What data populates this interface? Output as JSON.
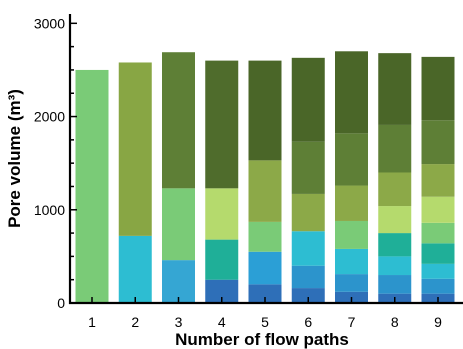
{
  "chart_data": {
    "type": "bar",
    "stacked": true,
    "xlabel": "Number of flow paths",
    "ylabel": "Pore volume (m³)",
    "ylim": [
      0,
      3100
    ],
    "yticks": [
      0,
      1000,
      2000,
      3000
    ],
    "grid": false,
    "categories": [
      "1",
      "2",
      "3",
      "4",
      "5",
      "6",
      "7",
      "8",
      "9"
    ],
    "segment_colors": [
      "#2E6FB8",
      "#2B8CC4",
      "#31A9D6",
      "#2BBFD0",
      "#1FAF98",
      "#8FD08A",
      "#B7DA6E",
      "#8CA948",
      "#5E7F36",
      "#4A6628"
    ],
    "bars": [
      {
        "category": "1",
        "segments": [
          {
            "value": 2500,
            "color": "#7ACB77"
          }
        ]
      },
      {
        "category": "2",
        "segments": [
          {
            "value": 720,
            "color": "#2DBDD2"
          },
          {
            "value": 1860,
            "color": "#88A644"
          }
        ]
      },
      {
        "category": "3",
        "segments": [
          {
            "value": 460,
            "color": "#35A6D3"
          },
          {
            "value": 770,
            "color": "#7ACB77"
          },
          {
            "value": 1460,
            "color": "#5E7F36"
          }
        ]
      },
      {
        "category": "4",
        "segments": [
          {
            "value": 250,
            "color": "#2E6FB8"
          },
          {
            "value": 430,
            "color": "#1FAF98"
          },
          {
            "value": 550,
            "color": "#B5DA6D"
          },
          {
            "value": 1370,
            "color": "#4F6C2C"
          }
        ]
      },
      {
        "category": "5",
        "segments": [
          {
            "value": 200,
            "color": "#2E6FB8"
          },
          {
            "value": 350,
            "color": "#2B9FD6"
          },
          {
            "value": 320,
            "color": "#7ACB77"
          },
          {
            "value": 660,
            "color": "#8CA948"
          },
          {
            "value": 1070,
            "color": "#4A6628"
          }
        ]
      },
      {
        "category": "6",
        "segments": [
          {
            "value": 160,
            "color": "#2E6FB8"
          },
          {
            "value": 240,
            "color": "#2C94CC"
          },
          {
            "value": 370,
            "color": "#2DBDD2"
          },
          {
            "value": 400,
            "color": "#8CA948"
          },
          {
            "value": 560,
            "color": "#5E7F36"
          },
          {
            "value": 900,
            "color": "#4A6628"
          }
        ]
      },
      {
        "category": "7",
        "segments": [
          {
            "value": 120,
            "color": "#2E6FB8"
          },
          {
            "value": 190,
            "color": "#2C94CC"
          },
          {
            "value": 270,
            "color": "#2DBDD2"
          },
          {
            "value": 300,
            "color": "#7ACB77"
          },
          {
            "value": 380,
            "color": "#8CA948"
          },
          {
            "value": 560,
            "color": "#5E7F36"
          },
          {
            "value": 880,
            "color": "#4A6628"
          }
        ]
      },
      {
        "category": "8",
        "segments": [
          {
            "value": 100,
            "color": "#2E6FB8"
          },
          {
            "value": 200,
            "color": "#2C94CC"
          },
          {
            "value": 200,
            "color": "#2DBDD2"
          },
          {
            "value": 250,
            "color": "#1FAF98"
          },
          {
            "value": 290,
            "color": "#B5DA6D"
          },
          {
            "value": 360,
            "color": "#8CA948"
          },
          {
            "value": 510,
            "color": "#5E7F36"
          },
          {
            "value": 770,
            "color": "#4A6628"
          }
        ]
      },
      {
        "category": "9",
        "segments": [
          {
            "value": 100,
            "color": "#2E6FB8"
          },
          {
            "value": 160,
            "color": "#2C94CC"
          },
          {
            "value": 160,
            "color": "#2DBDD2"
          },
          {
            "value": 220,
            "color": "#1FAF98"
          },
          {
            "value": 220,
            "color": "#7ACB77"
          },
          {
            "value": 280,
            "color": "#B5DA6D"
          },
          {
            "value": 350,
            "color": "#8CA948"
          },
          {
            "value": 470,
            "color": "#5E7F36"
          },
          {
            "value": 680,
            "color": "#4A6628"
          }
        ]
      }
    ]
  }
}
